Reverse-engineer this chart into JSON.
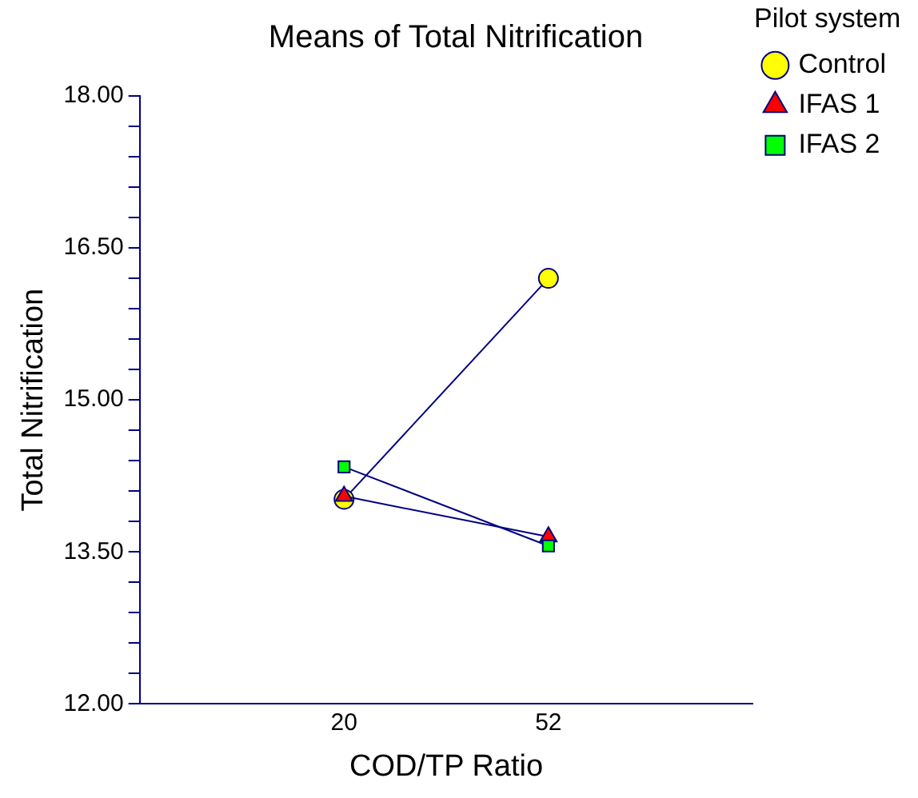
{
  "chart_data": {
    "type": "line",
    "title": "Means of Total Nitrification",
    "xlabel": "COD/TP Ratio",
    "ylabel": "Total Nitrification",
    "legend_title": "Pilot system",
    "categories": [
      "20",
      "52"
    ],
    "series": [
      {
        "name": "Control",
        "color": "#ffff00",
        "marker": "circle",
        "values": [
          14.02,
          16.2
        ]
      },
      {
        "name": "IFAS 1",
        "color": "#ff0000",
        "marker": "triangle",
        "values": [
          14.05,
          13.65
        ]
      },
      {
        "name": "IFAS 2",
        "color": "#00ff00",
        "marker": "square",
        "values": [
          14.34,
          13.56
        ]
      }
    ],
    "ylim": [
      12,
      18
    ],
    "yticks": [
      {
        "value": 12,
        "label": "12.00"
      },
      {
        "value": 12.3,
        "label": null
      },
      {
        "value": 12.6,
        "label": null
      },
      {
        "value": 12.9,
        "label": null
      },
      {
        "value": 13.2,
        "label": null
      },
      {
        "value": 13.5,
        "label": "13.50"
      },
      {
        "value": 13.8,
        "label": null
      },
      {
        "value": 14.1,
        "label": null
      },
      {
        "value": 14.4,
        "label": null
      },
      {
        "value": 14.7,
        "label": null
      },
      {
        "value": 15,
        "label": "15.00"
      },
      {
        "value": 15.3,
        "label": null
      },
      {
        "value": 15.6,
        "label": null
      },
      {
        "value": 15.9,
        "label": null
      },
      {
        "value": 16.2,
        "label": null
      },
      {
        "value": 16.5,
        "label": "16.50"
      },
      {
        "value": 16.8,
        "label": null
      },
      {
        "value": 17.1,
        "label": null
      },
      {
        "value": 17.4,
        "label": null
      },
      {
        "value": 17.7,
        "label": null
      },
      {
        "value": 18,
        "label": "18.00"
      }
    ],
    "grid": false,
    "legend": "right",
    "line_style": "solid"
  }
}
